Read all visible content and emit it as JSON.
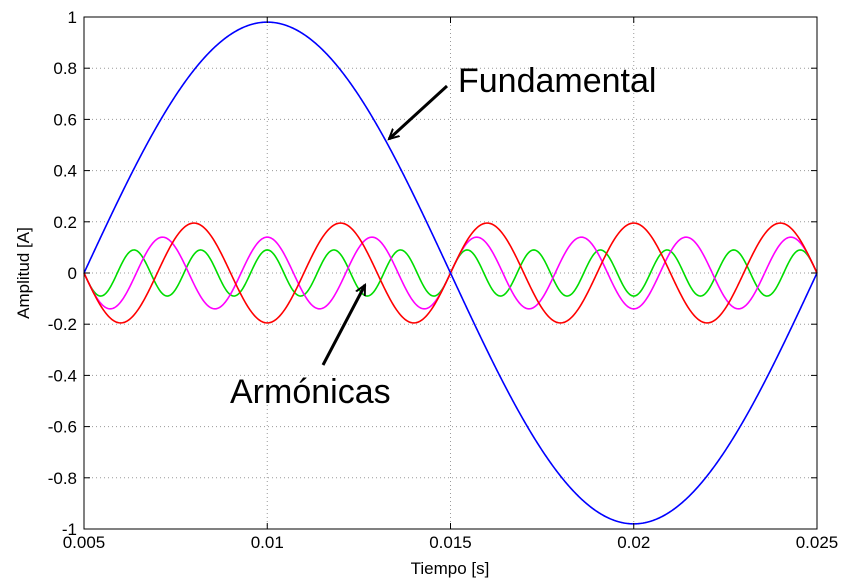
{
  "chart_data": {
    "type": "line",
    "title": "",
    "xlabel": "Tiempo [s]",
    "ylabel": "Amplitud [A]",
    "xlim": [
      0.005,
      0.025
    ],
    "ylim": [
      -1,
      1
    ],
    "x_ticks": [
      0.005,
      0.01,
      0.015,
      0.02,
      0.025
    ],
    "x_tick_labels": [
      "0.005",
      "0.01",
      "0.015",
      "0.02",
      "0.025"
    ],
    "y_ticks": [
      -1,
      -0.8,
      -0.6,
      -0.4,
      -0.2,
      0,
      0.2,
      0.4,
      0.6,
      0.8,
      1
    ],
    "y_tick_labels": [
      "-1",
      "-0.8",
      "-0.6",
      "-0.4",
      "-0.2",
      "0",
      "0.2",
      "0.4",
      "0.6",
      "0.8",
      "1"
    ],
    "grid": true,
    "series": [
      {
        "color": "#0000ff",
        "amplitude": 0.98,
        "frequency_hz": 50,
        "phase_deg": -90
      },
      {
        "color": "#ff0000",
        "amplitude": 0.195,
        "frequency_hz": 250,
        "phase_deg": 90
      },
      {
        "color": "#ff00ff",
        "amplitude": 0.14,
        "frequency_hz": 350,
        "phase_deg": -90
      },
      {
        "color": "#00dd00",
        "amplitude": 0.09,
        "frequency_hz": 550,
        "phase_deg": -90
      }
    ],
    "annotations": [
      {
        "text": "Fundamental",
        "points_to": {
          "x": 0.0133,
          "y": 0.53
        }
      },
      {
        "text": "Armónicas",
        "points_to": {
          "x": 0.013,
          "y": -0.04
        }
      }
    ]
  }
}
